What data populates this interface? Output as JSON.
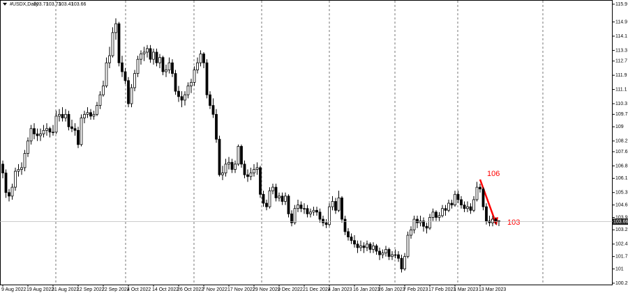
{
  "chart_data": {
    "type": "candlestick",
    "title": "#USDX,Daily",
    "up_color": "#ffffff",
    "down_color": "#000000",
    "edge_color": "#000000",
    "ylim": [
      100.2,
      115.9
    ],
    "yticks": [
      115.9,
      114.9,
      114.1,
      113.3,
      112.7,
      111.9,
      111.1,
      110.3,
      109.7,
      109.0,
      108.2,
      107.6,
      106.8,
      106.1,
      105.3,
      104.6,
      103.9,
      103.2,
      102.4,
      101.7,
      101.0,
      100.2
    ],
    "annotations": [
      {
        "text": "106",
        "color": "#ff0000"
      },
      {
        "text": "103",
        "color": "#ff0000"
      }
    ],
    "categories": [
      "9 Aug 2022",
      null,
      null,
      null,
      null,
      null,
      null,
      null,
      "19 Aug 2022",
      null,
      null,
      null,
      null,
      null,
      null,
      null,
      "31 Aug 2022",
      null,
      null,
      null,
      null,
      null,
      null,
      null,
      "12 Sep 2022",
      null,
      null,
      null,
      null,
      null,
      null,
      null,
      "22 Sep 2022",
      null,
      null,
      null,
      null,
      null,
      null,
      null,
      "4 Oct 2022",
      null,
      null,
      null,
      null,
      null,
      null,
      null,
      "14 Oct 2022",
      null,
      null,
      null,
      null,
      null,
      null,
      null,
      "26 Oct 2022",
      null,
      null,
      null,
      null,
      null,
      null,
      null,
      "7 Nov 2022",
      null,
      null,
      null,
      null,
      null,
      null,
      null,
      "17 Nov 2022",
      null,
      null,
      null,
      null,
      null,
      null,
      null,
      "29 Nov 2022",
      null,
      null,
      null,
      null,
      null,
      null,
      null,
      "9 Dec 2022",
      null,
      null,
      null,
      null,
      null,
      null,
      null,
      "21 Dec 2022",
      null,
      null,
      null,
      null,
      null,
      null,
      null,
      "4 Jan 2023",
      null,
      null,
      null,
      null,
      null,
      null,
      null,
      "16 Jan 2023",
      null,
      null,
      null,
      null,
      null,
      null,
      null,
      "26 Jan 2023",
      null,
      null,
      null,
      null,
      null,
      null,
      null,
      "7 Feb 2023",
      null,
      null,
      null,
      null,
      null,
      null,
      null,
      "17 Feb 2023",
      null,
      null,
      null,
      null,
      null,
      null,
      null,
      "1 Mar 2023",
      null,
      null,
      null,
      null,
      null,
      null,
      null,
      "13 Mar 2023",
      null,
      null,
      null,
      null,
      null,
      null
    ],
    "candles": [
      [
        106.9,
        107.1,
        106.1,
        106.4
      ],
      [
        106.4,
        106.6,
        105.0,
        105.3
      ],
      [
        105.3,
        105.5,
        104.8,
        105.1
      ],
      [
        105.1,
        105.8,
        104.9,
        105.6
      ],
      [
        105.6,
        106.7,
        105.4,
        106.5
      ],
      [
        106.5,
        106.9,
        106.2,
        106.6
      ],
      [
        106.6,
        107.0,
        106.3,
        106.7
      ],
      [
        106.7,
        107.7,
        106.5,
        107.5
      ],
      [
        107.5,
        108.4,
        107.3,
        108.2
      ],
      [
        108.2,
        109.1,
        108.0,
        108.9
      ],
      [
        108.9,
        109.2,
        108.3,
        108.6
      ],
      [
        108.6,
        108.9,
        108.2,
        108.5
      ],
      [
        108.5,
        108.9,
        108.2,
        108.6
      ],
      [
        108.6,
        109.1,
        108.4,
        108.8
      ],
      [
        108.8,
        109.2,
        108.5,
        108.9
      ],
      [
        108.9,
        109.0,
        108.4,
        108.7
      ],
      [
        108.7,
        109.1,
        108.5,
        108.7
      ],
      [
        108.7,
        109.9,
        108.6,
        109.6
      ],
      [
        109.6,
        110.0,
        109.3,
        109.7
      ],
      [
        109.7,
        110.1,
        109.3,
        109.5
      ],
      [
        109.5,
        110.0,
        109.3,
        109.7
      ],
      [
        109.7,
        109.9,
        108.8,
        109.0
      ],
      [
        109.0,
        109.4,
        108.7,
        108.9
      ],
      [
        108.9,
        109.2,
        108.5,
        108.8
      ],
      [
        108.8,
        109.0,
        107.8,
        108.0
      ],
      [
        108.0,
        109.7,
        107.9,
        109.5
      ],
      [
        109.5,
        109.9,
        109.2,
        109.7
      ],
      [
        109.7,
        110.1,
        109.5,
        109.8
      ],
      [
        109.8,
        110.0,
        109.4,
        109.6
      ],
      [
        109.6,
        109.9,
        109.4,
        109.7
      ],
      [
        109.7,
        110.4,
        109.6,
        110.2
      ],
      [
        110.2,
        111.0,
        110.0,
        110.8
      ],
      [
        110.8,
        111.6,
        110.7,
        111.3
      ],
      [
        111.3,
        112.9,
        111.2,
        112.6
      ],
      [
        112.6,
        113.5,
        112.3,
        113.0
      ],
      [
        113.0,
        114.6,
        112.9,
        114.3
      ],
      [
        114.3,
        115.1,
        113.9,
        114.8
      ],
      [
        114.8,
        114.9,
        112.4,
        112.6
      ],
      [
        112.6,
        113.0,
        111.8,
        112.1
      ],
      [
        112.1,
        112.3,
        111.4,
        111.6
      ],
      [
        111.6,
        111.8,
        110.1,
        110.3
      ],
      [
        110.3,
        111.4,
        110.1,
        111.2
      ],
      [
        111.2,
        112.2,
        111.0,
        112.0
      ],
      [
        112.0,
        113.0,
        111.8,
        112.8
      ],
      [
        112.8,
        113.3,
        112.5,
        113.1
      ],
      [
        113.1,
        113.5,
        112.7,
        113.2
      ],
      [
        113.2,
        113.6,
        112.9,
        113.4
      ],
      [
        113.4,
        113.6,
        112.6,
        112.8
      ],
      [
        112.8,
        113.4,
        112.5,
        113.2
      ],
      [
        113.2,
        113.4,
        112.4,
        112.6
      ],
      [
        112.6,
        113.1,
        112.3,
        112.9
      ],
      [
        112.9,
        113.0,
        111.9,
        112.1
      ],
      [
        112.1,
        112.5,
        111.8,
        112.2
      ],
      [
        112.2,
        112.9,
        112.0,
        112.6
      ],
      [
        112.6,
        112.8,
        111.8,
        112.0
      ],
      [
        112.0,
        112.2,
        110.8,
        111.0
      ],
      [
        111.0,
        111.3,
        110.4,
        110.7
      ],
      [
        110.7,
        111.0,
        110.1,
        110.5
      ],
      [
        110.5,
        111.0,
        110.2,
        110.8
      ],
      [
        110.8,
        111.5,
        110.6,
        111.3
      ],
      [
        111.3,
        111.7,
        110.9,
        111.5
      ],
      [
        111.5,
        112.4,
        111.3,
        112.2
      ],
      [
        112.2,
        112.9,
        112.0,
        112.6
      ],
      [
        112.6,
        113.3,
        112.4,
        113.1
      ],
      [
        113.1,
        113.2,
        112.3,
        112.6
      ],
      [
        112.6,
        112.8,
        110.6,
        110.8
      ],
      [
        110.8,
        111.0,
        110.0,
        110.2
      ],
      [
        110.2,
        110.6,
        109.5,
        109.7
      ],
      [
        109.7,
        110.0,
        108.1,
        108.3
      ],
      [
        108.3,
        108.5,
        106.2,
        106.3
      ],
      [
        106.3,
        106.8,
        106.0,
        106.4
      ],
      [
        106.4,
        107.2,
        106.2,
        106.9
      ],
      [
        106.9,
        107.3,
        106.6,
        107.0
      ],
      [
        107.0,
        107.2,
        106.4,
        106.6
      ],
      [
        106.6,
        107.1,
        106.4,
        106.9
      ],
      [
        106.9,
        108.0,
        106.8,
        107.9
      ],
      [
        107.9,
        108.0,
        106.7,
        106.9
      ],
      [
        106.9,
        107.1,
        106.1,
        106.3
      ],
      [
        106.3,
        106.6,
        105.9,
        106.2
      ],
      [
        106.2,
        106.7,
        106.0,
        106.4
      ],
      [
        106.4,
        106.9,
        106.2,
        106.6
      ],
      [
        106.6,
        107.0,
        106.3,
        106.7
      ],
      [
        106.7,
        106.8,
        105.0,
        105.2
      ],
      [
        105.2,
        105.4,
        104.5,
        104.7
      ],
      [
        104.7,
        104.9,
        104.3,
        104.5
      ],
      [
        104.5,
        105.6,
        104.4,
        105.4
      ],
      [
        105.4,
        105.8,
        105.2,
        105.6
      ],
      [
        105.6,
        105.8,
        104.8,
        105.0
      ],
      [
        105.0,
        105.3,
        104.8,
        105.1
      ],
      [
        105.1,
        105.3,
        104.6,
        104.8
      ],
      [
        104.8,
        105.3,
        104.6,
        105.1
      ],
      [
        105.1,
        105.2,
        103.9,
        104.1
      ],
      [
        104.1,
        104.3,
        103.4,
        103.6
      ],
      [
        103.6,
        104.6,
        103.5,
        104.4
      ],
      [
        104.4,
        104.9,
        104.2,
        104.6
      ],
      [
        104.6,
        104.8,
        104.2,
        104.4
      ],
      [
        104.4,
        104.7,
        104.1,
        104.4
      ],
      [
        104.4,
        104.6,
        103.9,
        104.1
      ],
      [
        104.1,
        104.4,
        103.9,
        104.2
      ],
      [
        104.2,
        104.5,
        104.0,
        104.3
      ],
      [
        104.3,
        104.5,
        104.0,
        104.2
      ],
      [
        104.2,
        104.4,
        103.6,
        103.8
      ],
      [
        103.8,
        104.0,
        103.4,
        103.6
      ],
      [
        103.6,
        103.8,
        103.3,
        103.5
      ],
      [
        103.5,
        104.7,
        103.4,
        104.5
      ],
      [
        104.5,
        105.1,
        104.3,
        104.8
      ],
      [
        104.8,
        105.0,
        104.1,
        104.3
      ],
      [
        104.3,
        105.4,
        104.2,
        105.0
      ],
      [
        105.0,
        105.1,
        103.6,
        103.8
      ],
      [
        103.8,
        104.0,
        102.9,
        103.1
      ],
      [
        103.1,
        103.3,
        102.6,
        102.8
      ],
      [
        102.8,
        103.0,
        102.4,
        102.6
      ],
      [
        102.6,
        102.9,
        102.2,
        102.4
      ],
      [
        102.4,
        102.6,
        101.9,
        102.2
      ],
      [
        102.2,
        102.6,
        102.0,
        102.3
      ],
      [
        102.3,
        102.5,
        101.9,
        102.2
      ],
      [
        102.2,
        102.6,
        102.0,
        102.4
      ],
      [
        102.4,
        102.5,
        101.9,
        102.1
      ],
      [
        102.1,
        102.5,
        101.9,
        102.3
      ],
      [
        102.3,
        102.4,
        101.8,
        102.0
      ],
      [
        102.0,
        102.2,
        101.5,
        101.8
      ],
      [
        101.8,
        102.1,
        101.6,
        101.9
      ],
      [
        101.9,
        102.3,
        101.7,
        102.1
      ],
      [
        102.1,
        102.2,
        101.5,
        101.7
      ],
      [
        101.7,
        102.0,
        101.5,
        101.8
      ],
      [
        101.8,
        102.1,
        101.6,
        101.8
      ],
      [
        101.8,
        102.0,
        101.4,
        101.6
      ],
      [
        101.6,
        101.8,
        100.8,
        101.0
      ],
      [
        101.0,
        101.9,
        100.9,
        101.7
      ],
      [
        101.7,
        103.1,
        101.6,
        102.9
      ],
      [
        102.9,
        103.4,
        102.7,
        103.2
      ],
      [
        103.2,
        104.0,
        103.0,
        103.8
      ],
      [
        103.8,
        104.0,
        103.3,
        103.6
      ],
      [
        103.6,
        104.0,
        103.4,
        103.7
      ],
      [
        103.7,
        103.9,
        103.1,
        103.4
      ],
      [
        103.4,
        103.6,
        103.0,
        103.3
      ],
      [
        103.3,
        104.1,
        103.2,
        103.9
      ],
      [
        103.9,
        104.4,
        103.7,
        104.2
      ],
      [
        104.2,
        104.3,
        103.7,
        103.9
      ],
      [
        103.9,
        104.2,
        103.7,
        104.0
      ],
      [
        104.0,
        104.6,
        103.9,
        104.4
      ],
      [
        104.4,
        104.6,
        104.0,
        104.3
      ],
      [
        104.3,
        104.9,
        104.2,
        104.7
      ],
      [
        104.7,
        104.9,
        104.4,
        104.6
      ],
      [
        104.6,
        105.4,
        104.5,
        105.2
      ],
      [
        105.2,
        105.4,
        104.7,
        104.9
      ],
      [
        104.9,
        105.1,
        104.4,
        104.6
      ],
      [
        104.6,
        104.8,
        104.2,
        104.4
      ],
      [
        104.4,
        104.8,
        104.2,
        104.5
      ],
      [
        104.5,
        104.7,
        104.1,
        104.3
      ],
      [
        104.3,
        105.1,
        104.2,
        104.9
      ],
      [
        104.9,
        105.9,
        104.8,
        105.6
      ],
      [
        105.6,
        105.8,
        105.3,
        105.5
      ],
      [
        105.5,
        105.6,
        104.3,
        104.5
      ],
      [
        104.5,
        104.7,
        103.5,
        103.7
      ],
      [
        103.7,
        104.0,
        103.4,
        103.6
      ],
      [
        103.6,
        104.0,
        103.4,
        103.8
      ],
      [
        103.8,
        103.9,
        103.5,
        103.7
      ],
      [
        103.71,
        103.73,
        103.41,
        103.66
      ]
    ]
  }
}
